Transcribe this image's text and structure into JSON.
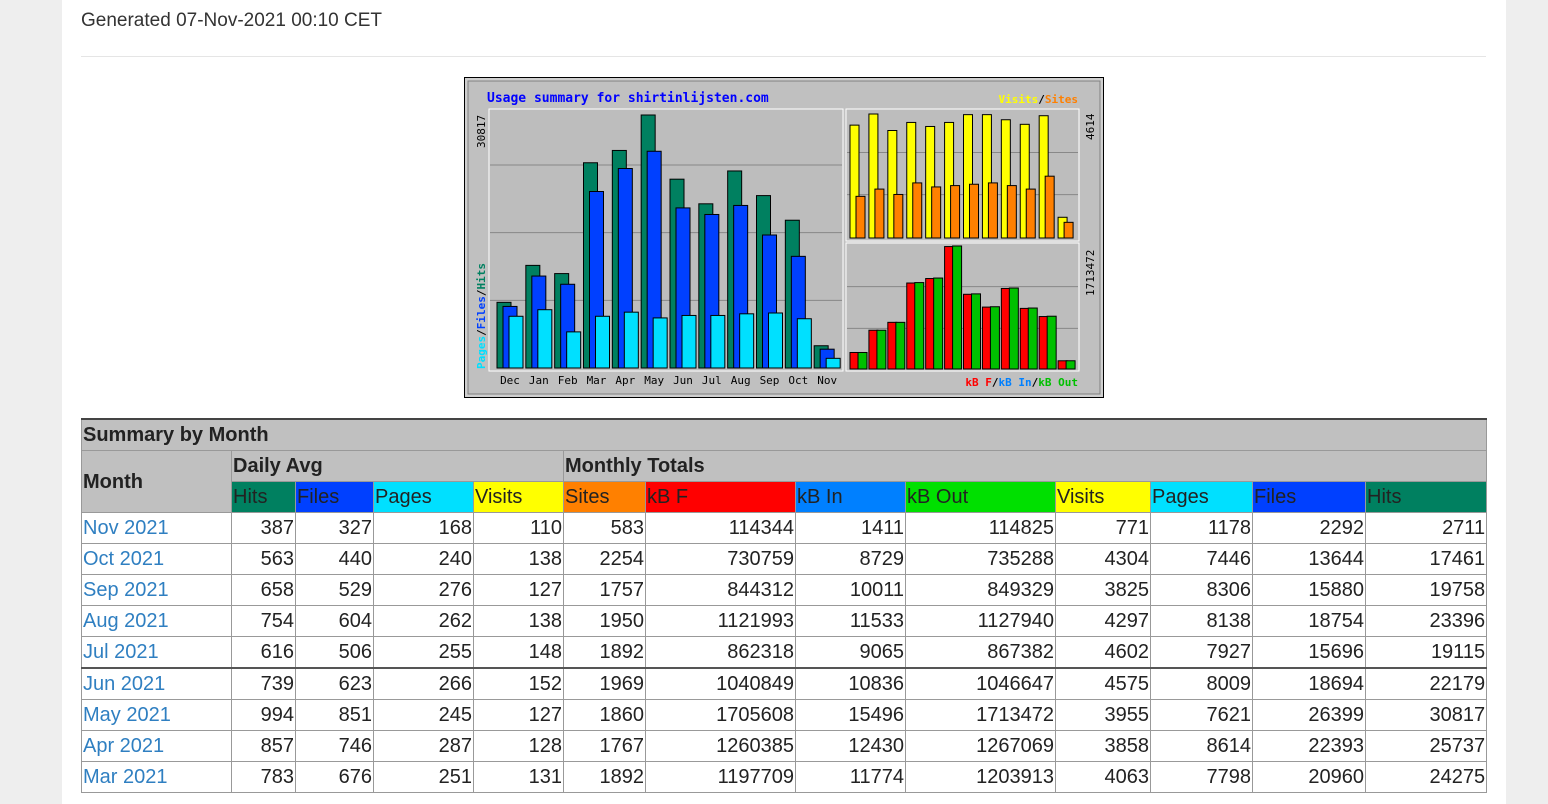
{
  "header": {
    "generated": "Generated 07-Nov-2021 00:10 CET"
  },
  "chart_data": {
    "type": "bar",
    "title": "Usage summary for shirtinlijsten.com",
    "categories": [
      "Dec",
      "Jan",
      "Feb",
      "Mar",
      "Apr",
      "May",
      "Jun",
      "Jul",
      "Aug",
      "Sep",
      "Oct",
      "Nov"
    ],
    "left_panel": {
      "axis_max_label": "30817",
      "legend": [
        "Pages",
        "Files",
        "Hits"
      ],
      "series": [
        {
          "name": "Hits",
          "values": [
            8000,
            12500,
            11500,
            25000,
            26500,
            30817,
            23000,
            20000,
            24000,
            21000,
            18000,
            2711
          ]
        },
        {
          "name": "Files",
          "values": [
            7500,
            11200,
            10200,
            21500,
            24300,
            26399,
            19500,
            18700,
            19800,
            16200,
            13600,
            2292
          ]
        },
        {
          "name": "Pages",
          "values": [
            6300,
            7100,
            4400,
            6300,
            6800,
            6100,
            6400,
            6400,
            6600,
            6700,
            6000,
            1178
          ]
        }
      ],
      "colors": {
        "Hits": "#008060",
        "Files": "#0040ff",
        "Pages": "#00e0ff"
      }
    },
    "top_right_panel": {
      "axis_max_label": "4614",
      "legend": [
        "Visits",
        "Sites"
      ],
      "series": [
        {
          "name": "Visits",
          "values": [
            4200,
            4614,
            4000,
            4300,
            4150,
            4300,
            4590,
            4590,
            4400,
            4230,
            4550,
            771
          ]
        },
        {
          "name": "Sites",
          "values": [
            1550,
            1820,
            1620,
            2050,
            1900,
            1950,
            2000,
            2050,
            1950,
            1820,
            2300,
            583
          ]
        }
      ],
      "colors": {
        "Visits": "#ffff00",
        "Sites": "#ff8000"
      }
    },
    "bottom_right_panel": {
      "axis_max_label": "1713472",
      "legend": [
        "kB F",
        "kB In",
        "kB Out"
      ],
      "series": [
        {
          "name": "kB F",
          "values": [
            230000,
            540000,
            650000,
            1197709,
            1260385,
            1705608,
            1040849,
            862318,
            1121993,
            844312,
            730759,
            114344
          ]
        },
        {
          "name": "kB Out",
          "values": [
            230000,
            540000,
            650000,
            1203913,
            1267069,
            1713472,
            1046647,
            867382,
            1127940,
            849329,
            735288,
            114825
          ]
        }
      ],
      "colors": {
        "kB F": "#ff0000",
        "kB In": "#0080ff",
        "kB Out": "#00c000"
      }
    }
  },
  "table": {
    "title": "Summary by Month",
    "month_header": "Month",
    "daily_avg_header": "Daily Avg",
    "monthly_totals_header": "Monthly Totals",
    "columns": [
      {
        "label": "Hits",
        "color": "#008060"
      },
      {
        "label": "Files",
        "color": "#0040ff"
      },
      {
        "label": "Pages",
        "color": "#00e0ff"
      },
      {
        "label": "Visits",
        "color": "#ffff00"
      },
      {
        "label": "Sites",
        "color": "#ff8000"
      },
      {
        "label": "kB F",
        "color": "#ff0000"
      },
      {
        "label": "kB In",
        "color": "#0080ff"
      },
      {
        "label": "kB Out",
        "color": "#00e000"
      },
      {
        "label": "Visits",
        "color": "#ffff00"
      },
      {
        "label": "Pages",
        "color": "#00e0ff"
      },
      {
        "label": "Files",
        "color": "#0040ff"
      },
      {
        "label": "Hits",
        "color": "#008060"
      }
    ],
    "rows": [
      {
        "month": "Nov 2021",
        "values": [
          "387",
          "327",
          "168",
          "110",
          "583",
          "114344",
          "1411",
          "114825",
          "771",
          "1178",
          "2292",
          "2711"
        ]
      },
      {
        "month": "Oct 2021",
        "values": [
          "563",
          "440",
          "240",
          "138",
          "2254",
          "730759",
          "8729",
          "735288",
          "4304",
          "7446",
          "13644",
          "17461"
        ]
      },
      {
        "month": "Sep 2021",
        "values": [
          "658",
          "529",
          "276",
          "127",
          "1757",
          "844312",
          "10011",
          "849329",
          "3825",
          "8306",
          "15880",
          "19758"
        ]
      },
      {
        "month": "Aug 2021",
        "values": [
          "754",
          "604",
          "262",
          "138",
          "1950",
          "1121993",
          "11533",
          "1127940",
          "4297",
          "8138",
          "18754",
          "23396"
        ]
      },
      {
        "month": "Jul 2021",
        "values": [
          "616",
          "506",
          "255",
          "148",
          "1892",
          "862318",
          "9065",
          "867382",
          "4602",
          "7927",
          "15696",
          "19115"
        ]
      },
      {
        "month": "Jun 2021",
        "values": [
          "739",
          "623",
          "266",
          "152",
          "1969",
          "1040849",
          "10836",
          "1046647",
          "4575",
          "8009",
          "18694",
          "22179"
        ]
      },
      {
        "month": "May 2021",
        "values": [
          "994",
          "851",
          "245",
          "127",
          "1860",
          "1705608",
          "15496",
          "1713472",
          "3955",
          "7621",
          "26399",
          "30817"
        ]
      },
      {
        "month": "Apr 2021",
        "values": [
          "857",
          "746",
          "287",
          "128",
          "1767",
          "1260385",
          "12430",
          "1267069",
          "3858",
          "8614",
          "22393",
          "25737"
        ]
      },
      {
        "month": "Mar 2021",
        "values": [
          "783",
          "676",
          "251",
          "131",
          "1892",
          "1197709",
          "11774",
          "1203913",
          "4063",
          "7798",
          "20960",
          "24275"
        ]
      }
    ]
  }
}
